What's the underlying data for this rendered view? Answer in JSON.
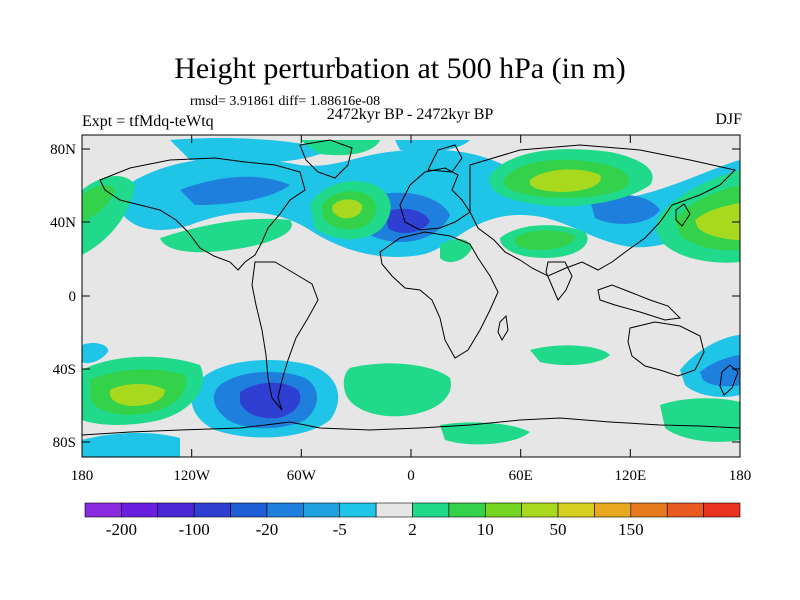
{
  "title": "Height perturbation at 500 hPa (in m)",
  "stats": "rmsd= 3.91861 diff= 1.88616e-08",
  "period": "2472kyr BP - 2472kyr BP",
  "experiment": "Expt = tfMdq-teWtq",
  "season": "DJF",
  "lat_ticks": [
    "80N",
    "40N",
    "0",
    "40S",
    "80S"
  ],
  "lon_ticks": [
    "180",
    "120W",
    "60W",
    "0",
    "60E",
    "120E",
    "180"
  ],
  "colorbar": {
    "labels": [
      "-200",
      "-100",
      "-20",
      "-5",
      "2",
      "10",
      "50",
      "150"
    ],
    "colors": [
      "#8a2be2",
      "#6a1fe0",
      "#4b28d6",
      "#2f3fd2",
      "#1f5fd6",
      "#1f7fdc",
      "#1fa0e0",
      "#1fc4e6",
      "#e6e6e6",
      "#20d98a",
      "#33d24a",
      "#74d41f",
      "#a8d91f",
      "#d6cf1f",
      "#e8a81f",
      "#e87a1f",
      "#e85a1f",
      "#e8341f"
    ]
  },
  "palette": {
    "background": "#e6e6e6",
    "light_blue": "#1fc4e6",
    "mid_blue": "#1f7fdc",
    "dark_blue": "#2f3fd2",
    "teal_green": "#20d98a",
    "green": "#33d24a",
    "yellow_green": "#a8d91f"
  }
}
